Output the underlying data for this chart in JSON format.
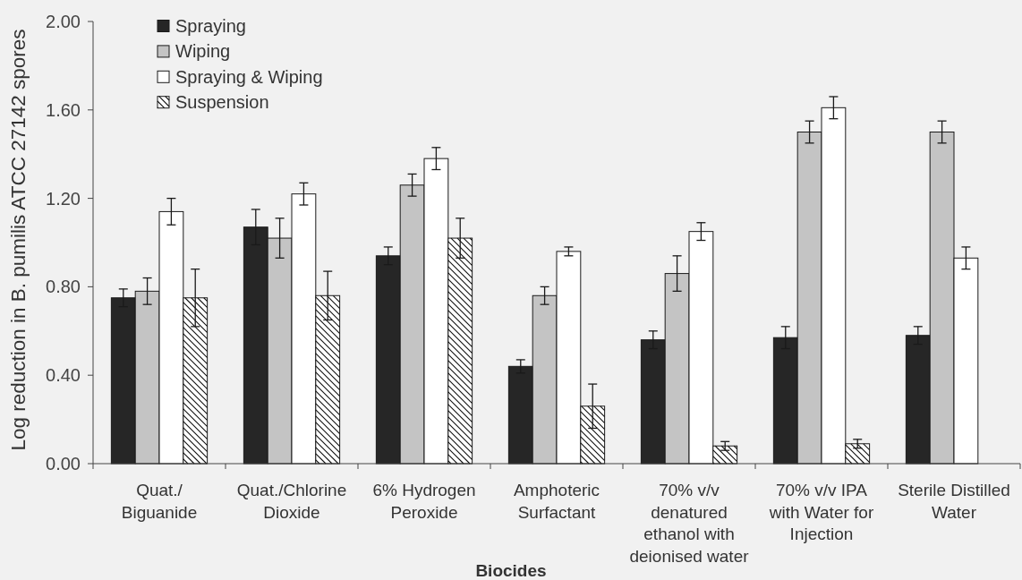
{
  "chart_data": {
    "type": "bar",
    "ylabel": "Log reduction in B. pumilis ATCC 27142 spores",
    "xlabel": "Biocides",
    "categories": [
      "Quat./Biguanide",
      "Quat./Chlorine Dioxide",
      "6% Hydrogen Peroxide",
      "Amphoteric Surfactant",
      "70% v/v denatured ethanol with deionised water",
      "70% v/v IPA with Water for Injection",
      "Sterile Distilled Water"
    ],
    "series": [
      {
        "name": "Spraying",
        "color": "#262626",
        "values": [
          0.75,
          1.07,
          0.94,
          0.44,
          0.56,
          0.57,
          0.58
        ],
        "errors": [
          0.04,
          0.08,
          0.04,
          0.03,
          0.04,
          0.05,
          0.04
        ]
      },
      {
        "name": "Wiping",
        "color": "#c4c4c4",
        "values": [
          0.78,
          1.02,
          1.26,
          0.76,
          0.86,
          1.5,
          1.5
        ],
        "errors": [
          0.06,
          0.09,
          0.05,
          0.04,
          0.08,
          0.05,
          0.05
        ]
      },
      {
        "name": "Spraying & Wiping",
        "color": "#ffffff",
        "values": [
          1.14,
          1.22,
          1.38,
          0.96,
          1.05,
          1.61,
          0.93
        ],
        "errors": [
          0.06,
          0.05,
          0.05,
          0.02,
          0.04,
          0.05,
          0.05
        ]
      },
      {
        "name": "Suspension",
        "color": "#ffffff",
        "values": [
          0.75,
          0.76,
          1.02,
          0.26,
          0.08,
          0.09,
          null
        ],
        "errors": [
          0.13,
          0.11,
          0.09,
          0.1,
          0.02,
          0.02,
          null
        ]
      }
    ],
    "ylim": [
      0,
      2
    ],
    "yticks": [
      {
        "value": 0,
        "label": "0.00"
      },
      {
        "value": 0.4,
        "label": "0.40"
      },
      {
        "value": 0.8,
        "label": "0.80"
      },
      {
        "value": 1.2,
        "label": "1.20"
      },
      {
        "value": 1.6,
        "label": "1.60"
      },
      {
        "value": 2,
        "label": "2.00"
      }
    ],
    "legend": "top left"
  }
}
